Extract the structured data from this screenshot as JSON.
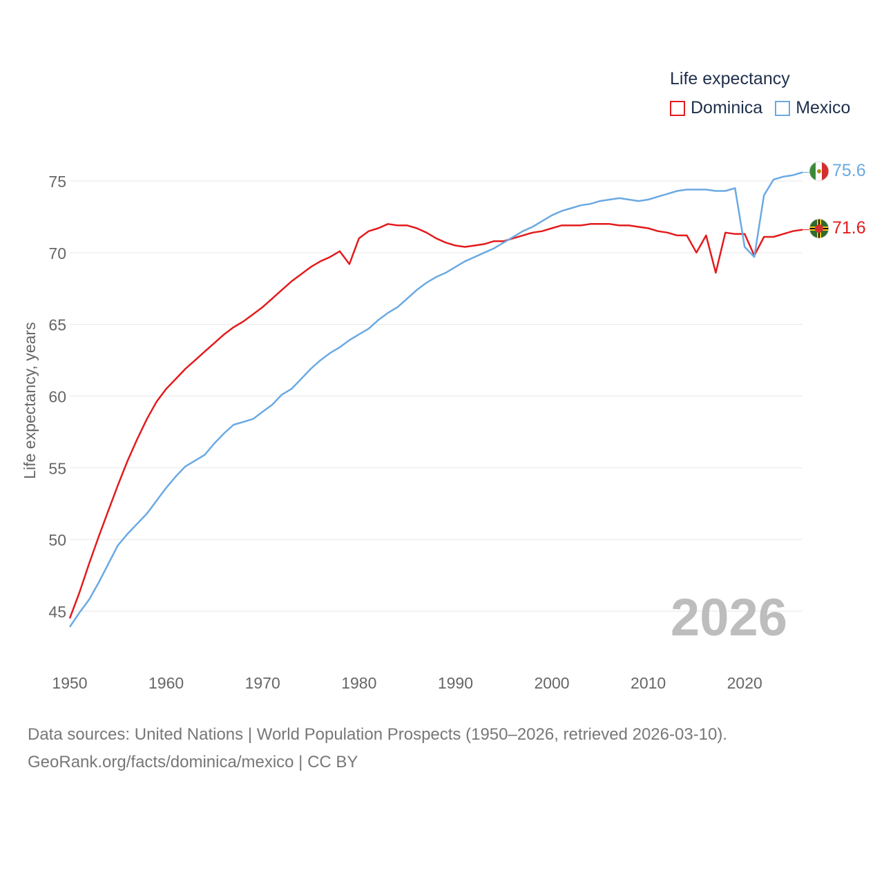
{
  "legend": {
    "title": "Life expectancy",
    "series": [
      {
        "name": "Dominica",
        "color": "#e31a1c"
      },
      {
        "name": "Mexico",
        "color": "#6aa9e3"
      }
    ]
  },
  "year_label": "2026",
  "footer": {
    "line1": "Data sources: United Nations | World Population Prospects (1950–2026, retrieved 2026-03-10).",
    "line2": "GeoRank.org/facts/dominica/mexico | CC BY"
  },
  "end_labels": [
    {
      "series": "Mexico",
      "text": "75.6",
      "flag": "mexico-flag-icon"
    },
    {
      "series": "Dominica",
      "text": "71.6",
      "flag": "dominica-flag-icon"
    }
  ],
  "chart_data": {
    "type": "line",
    "title": "",
    "xlabel": "",
    "ylabel": "Life expectancy, years",
    "xlim": [
      1950,
      2026
    ],
    "ylim": [
      43,
      77
    ],
    "xticks": [
      1950,
      1960,
      1970,
      1980,
      1990,
      2000,
      2010,
      2020
    ],
    "yticks": [
      45,
      50,
      55,
      60,
      65,
      70,
      75
    ],
    "x": [
      1950,
      1951,
      1952,
      1953,
      1954,
      1955,
      1956,
      1957,
      1958,
      1959,
      1960,
      1961,
      1962,
      1963,
      1964,
      1965,
      1966,
      1967,
      1968,
      1969,
      1970,
      1971,
      1972,
      1973,
      1974,
      1975,
      1976,
      1977,
      1978,
      1979,
      1980,
      1981,
      1982,
      1983,
      1984,
      1985,
      1986,
      1987,
      1988,
      1989,
      1990,
      1991,
      1992,
      1993,
      1994,
      1995,
      1996,
      1997,
      1998,
      1999,
      2000,
      2001,
      2002,
      2003,
      2004,
      2005,
      2006,
      2007,
      2008,
      2009,
      2010,
      2011,
      2012,
      2013,
      2014,
      2015,
      2016,
      2017,
      2018,
      2019,
      2020,
      2021,
      2022,
      2023,
      2024,
      2025,
      2026
    ],
    "series": [
      {
        "name": "Dominica",
        "color": "#e31a1c",
        "values": [
          44.5,
          46.3,
          48.3,
          50.2,
          52.0,
          53.8,
          55.5,
          57.0,
          58.4,
          59.6,
          60.5,
          61.2,
          61.9,
          62.5,
          63.1,
          63.7,
          64.3,
          64.8,
          65.2,
          65.7,
          66.2,
          66.8,
          67.4,
          68.0,
          68.5,
          69.0,
          69.4,
          69.7,
          70.1,
          69.2,
          71.0,
          71.5,
          71.7,
          72.0,
          71.9,
          71.9,
          71.7,
          71.4,
          71.0,
          70.7,
          70.5,
          70.4,
          70.5,
          70.6,
          70.8,
          70.8,
          71.0,
          71.2,
          71.4,
          71.5,
          71.7,
          71.9,
          71.9,
          71.9,
          72.0,
          72.0,
          72.0,
          71.9,
          71.9,
          71.8,
          71.7,
          71.5,
          71.4,
          71.2,
          71.2,
          70.0,
          71.2,
          68.6,
          71.4,
          71.3,
          71.3,
          69.8,
          71.1,
          71.1,
          71.3,
          71.5,
          71.6
        ]
      },
      {
        "name": "Mexico",
        "color": "#6aa9e3",
        "values": [
          43.9,
          44.9,
          45.8,
          47.0,
          48.3,
          49.6,
          50.4,
          51.1,
          51.8,
          52.7,
          53.6,
          54.4,
          55.1,
          55.5,
          55.9,
          56.7,
          57.4,
          58.0,
          58.2,
          58.4,
          58.9,
          59.4,
          60.1,
          60.5,
          61.2,
          61.9,
          62.5,
          63.0,
          63.4,
          63.9,
          64.3,
          64.7,
          65.3,
          65.8,
          66.2,
          66.8,
          67.4,
          67.9,
          68.3,
          68.6,
          69.0,
          69.4,
          69.7,
          70.0,
          70.3,
          70.7,
          71.1,
          71.5,
          71.8,
          72.2,
          72.6,
          72.9,
          73.1,
          73.3,
          73.4,
          73.6,
          73.7,
          73.8,
          73.7,
          73.6,
          73.7,
          73.9,
          74.1,
          74.3,
          74.4,
          74.4,
          74.4,
          74.3,
          74.3,
          74.5,
          70.4,
          69.7,
          74.0,
          75.1,
          75.3,
          75.4,
          75.6
        ]
      }
    ]
  }
}
